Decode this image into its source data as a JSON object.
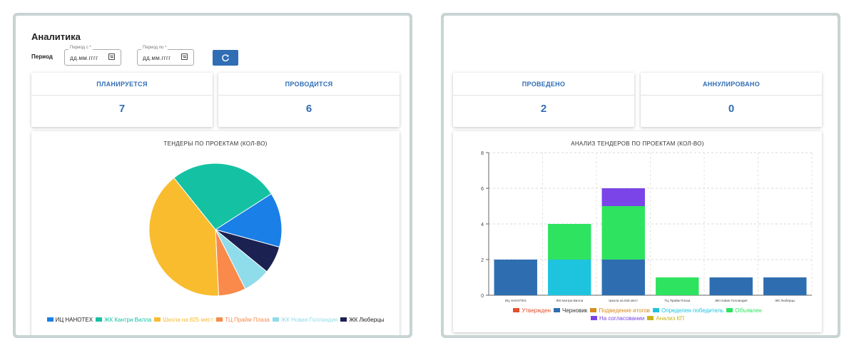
{
  "header": {
    "title": "Аналитика",
    "period_label": "Период",
    "date_from": {
      "legend": "Период с *",
      "value": "дд.мм.гггг"
    },
    "date_to": {
      "legend": "Период по *",
      "value": "дд.мм.гггг"
    }
  },
  "stats": {
    "planned": {
      "label": "ПЛАНИРУЕТСЯ",
      "value": "7"
    },
    "ongoing": {
      "label": "ПРОВОДИТСЯ",
      "value": "6"
    },
    "done": {
      "label": "ПРОВЕДЕНО",
      "value": "2"
    },
    "cancelled": {
      "label": "АННУЛИРОВАНО",
      "value": "0"
    }
  },
  "pie": {
    "title": "ТЕНДЕРЫ ПО ПРОЕКТАМ (КОЛ-ВО)",
    "legend": [
      {
        "label": "ИЦ НАНОТЕХ",
        "color": "#1a7fe6"
      },
      {
        "label": "ЖК Кантри Вилла",
        "color": "#14c2a3"
      },
      {
        "label": "Школа на 825 мест",
        "color": "#f9bc2e"
      },
      {
        "label": "ТЦ Прайм Плаза",
        "color": "#f98a4b"
      },
      {
        "label": "ЖК Новая Голландия",
        "color": "#8fdceb"
      },
      {
        "label": "ЖК Люберцы",
        "color": "#1b2150"
      }
    ]
  },
  "bar": {
    "title": "АНАЛИЗ ТЕНДЕРОВ ПО ПРОЕКТАМ (КОЛ-ВО)",
    "legend": [
      {
        "label": "Утвержден",
        "color": "#e34f2f"
      },
      {
        "label": "Черновик",
        "color": "#2e6eb0"
      },
      {
        "label": "Подведение итогов",
        "color": "#d88a1e"
      },
      {
        "label": "Определен победитель",
        "color": "#1ec4de"
      },
      {
        "label": "Объявлен",
        "color": "#2ee35f"
      },
      {
        "label": "На согласовании",
        "color": "#7a44e8"
      },
      {
        "label": "Анализ КП",
        "color": "#c9b21a"
      }
    ]
  },
  "chart_data": [
    {
      "type": "pie",
      "title": "ТЕНДЕРЫ ПО ПРОЕКТАМ (КОЛ-ВО)",
      "categories": [
        "ИЦ НАНОТЕХ",
        "ЖК Кантри Вилла",
        "Школа на 825 мест",
        "ТЦ Прайм Плаза",
        "ЖК Новая Голландия",
        "ЖК Люберцы"
      ],
      "values": [
        2,
        4,
        6,
        1,
        1,
        1
      ],
      "colors": [
        "#1a7fe6",
        "#14c2a3",
        "#f9bc2e",
        "#f98a4b",
        "#8fdceb",
        "#1b2150"
      ],
      "legend_position": "bottom"
    },
    {
      "type": "bar",
      "stacked": true,
      "title": "АНАЛИЗ ТЕНДЕРОВ ПО ПРОЕКТАМ (КОЛ-ВО)",
      "categories": [
        "ИЦ НАНОТЕХ",
        "ЖК Кантри Вилла",
        "Школа на 825 мест",
        "ТЦ Прайм Плаза",
        "ЖК Новая Голландия",
        "ЖК Люберцы"
      ],
      "series": [
        {
          "name": "Утвержден",
          "color": "#e34f2f",
          "values": [
            0,
            0,
            0,
            0,
            0,
            0
          ]
        },
        {
          "name": "Черновик",
          "color": "#2e6eb0",
          "values": [
            2,
            0,
            2,
            0,
            1,
            1
          ]
        },
        {
          "name": "Подведение итогов",
          "color": "#d88a1e",
          "values": [
            0,
            0,
            0,
            0,
            0,
            0
          ]
        },
        {
          "name": "Определен победитель",
          "color": "#1ec4de",
          "values": [
            0,
            2,
            0,
            0,
            0,
            0
          ]
        },
        {
          "name": "Объявлен",
          "color": "#2ee35f",
          "values": [
            0,
            2,
            3,
            1,
            0,
            0
          ]
        },
        {
          "name": "На согласовании",
          "color": "#7a44e8",
          "values": [
            0,
            0,
            1,
            0,
            0,
            0
          ]
        },
        {
          "name": "Анализ КП",
          "color": "#c9b21a",
          "values": [
            0,
            0,
            0,
            0,
            0,
            0
          ]
        }
      ],
      "ylim": [
        0,
        8
      ],
      "yticks": [
        0,
        2,
        4,
        6,
        8
      ],
      "grid": true,
      "legend_position": "bottom"
    }
  ]
}
